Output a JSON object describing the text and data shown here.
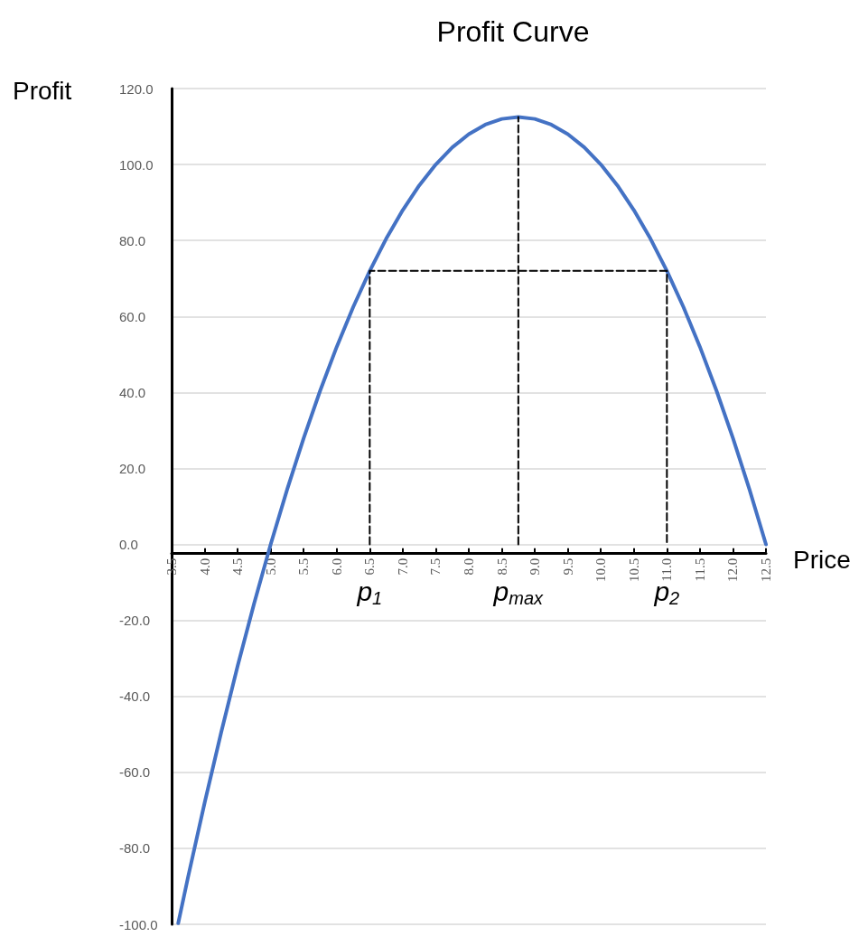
{
  "chart_data": {
    "type": "line",
    "title": "Profit Curve",
    "xlabel": "Price",
    "ylabel": "Profit",
    "x": [
      3.6,
      3.75,
      4,
      4.25,
      4.5,
      4.75,
      5,
      5.25,
      5.5,
      5.75,
      6,
      6.25,
      6.5,
      6.75,
      7,
      7.25,
      7.5,
      7.75,
      8,
      8.25,
      8.5,
      8.75,
      9,
      9.25,
      9.5,
      9.75,
      10,
      10.25,
      10.5,
      10.75,
      11,
      11.25,
      11.5,
      11.75,
      12,
      12.25,
      12.5
    ],
    "series": [
      {
        "color": "#4472c4",
        "values": [
          -99.7,
          -87.5,
          -68,
          -49.5,
          -32,
          -15.5,
          0,
          14.5,
          28,
          40.5,
          52,
          62.5,
          72,
          80.5,
          88,
          94.5,
          100,
          104.5,
          108,
          110.5,
          112,
          112.5,
          112,
          110.5,
          108,
          104.5,
          100,
          94.5,
          88,
          80.5,
          72,
          62.5,
          52,
          40.5,
          28,
          14.5,
          0
        ]
      },
      {
        "color": "#000000",
        "line_style": "dashed",
        "x": [
          6.5,
          6.5,
          11,
          11
        ],
        "values": [
          0,
          72,
          72,
          0
        ]
      },
      {
        "color": "#000000",
        "line_style": "dashed",
        "x": [
          8.75,
          8.75
        ],
        "values": [
          0,
          112.5
        ]
      }
    ],
    "xlim": [
      3.5,
      12.5
    ],
    "xticks": [
      3.5,
      {
        "value": 4,
        "label": "4.0"
      },
      4.5,
      {
        "value": 5,
        "label": "5.0"
      },
      5.5,
      {
        "value": 6,
        "label": "6.0"
      },
      6.5,
      {
        "value": 7,
        "label": "7.0"
      },
      7.5,
      {
        "value": 8,
        "label": "8.0"
      },
      8.5,
      {
        "value": 9,
        "label": "9.0"
      },
      9.5,
      {
        "value": 10,
        "label": "10.0"
      },
      10.5,
      {
        "value": 11,
        "label": "11.0"
      },
      11.5,
      {
        "value": 12,
        "label": "12.0"
      },
      12.5
    ],
    "ylim": [
      -100,
      120
    ],
    "yticks": [
      {
        "value": -100,
        "label": "-100.0"
      },
      {
        "value": -80,
        "label": "-80.0"
      },
      {
        "value": -60,
        "label": "-60.0"
      },
      {
        "value": -40,
        "label": "-40.0"
      },
      {
        "value": -20,
        "label": "-20.0"
      },
      {
        "value": 0,
        "label": "0.0"
      },
      {
        "value": 20,
        "label": "20.0"
      },
      {
        "value": 40,
        "label": "40.0"
      },
      {
        "value": 60,
        "label": "60.0"
      },
      {
        "value": 80,
        "label": "80.0"
      },
      {
        "value": 100,
        "label": "100.0"
      },
      {
        "value": 120,
        "label": "120.0"
      }
    ],
    "grid": "y",
    "marker": "none",
    "line_style": "solid",
    "annotations": [
      {
        "text": "p$_{1}$",
        "x": 6.5,
        "y": 0
      },
      {
        "text": "p$_{max}$",
        "x": 8.75,
        "y": 0
      },
      {
        "text": "p$_{2}$",
        "x": 11,
        "y": 0
      }
    ]
  }
}
